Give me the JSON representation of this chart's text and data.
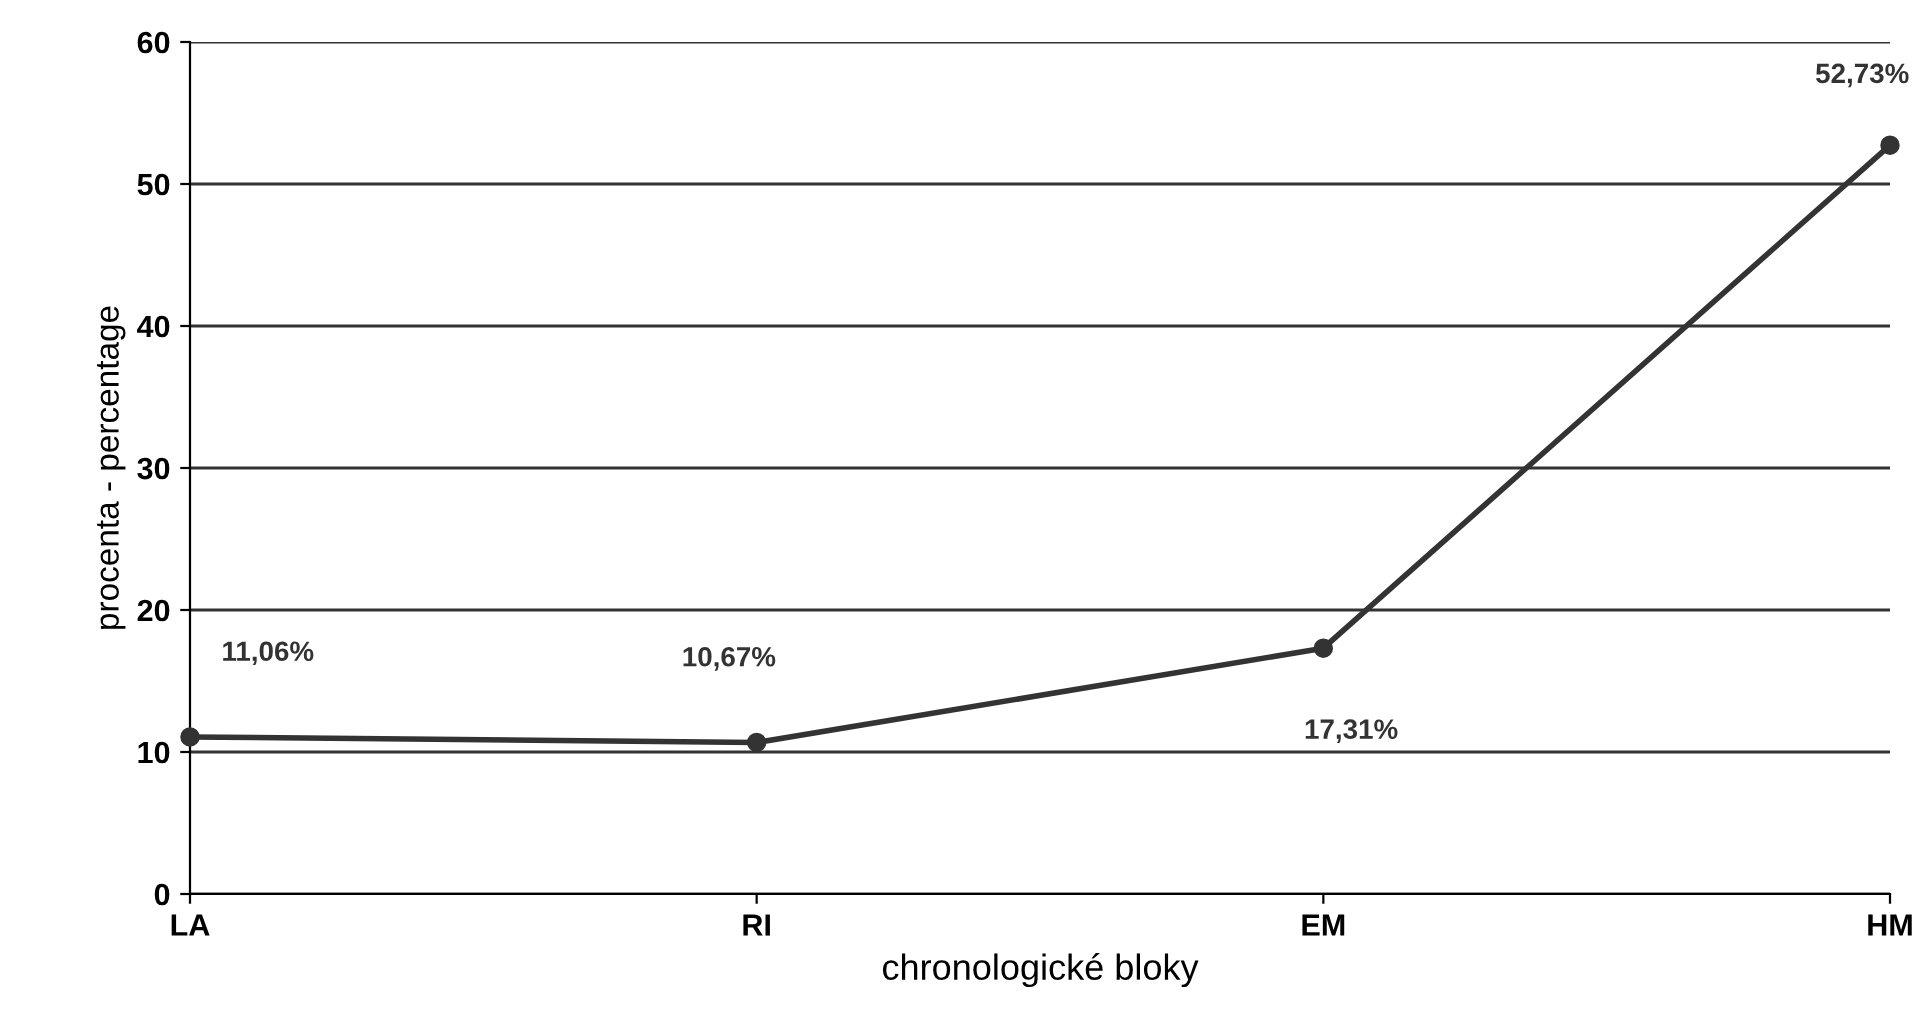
{
  "chart_data": {
    "type": "line",
    "xlabel": "chronologické bloky",
    "ylabel": "procenta - percentage",
    "categories": [
      "LA",
      "RI",
      "EM",
      "HM"
    ],
    "series": [
      {
        "color": "#333333",
        "values": [
          11.06,
          10.67,
          17.31,
          52.73
        ],
        "value_labels": [
          "11,06%",
          "10,67%",
          "17,31%",
          "52,73%"
        ]
      }
    ],
    "ylim": [
      0,
      60
    ],
    "yticks": [
      0,
      10,
      20,
      30,
      40,
      50,
      60
    ],
    "grid": "y",
    "marker": "circle",
    "line_style": "solid"
  }
}
